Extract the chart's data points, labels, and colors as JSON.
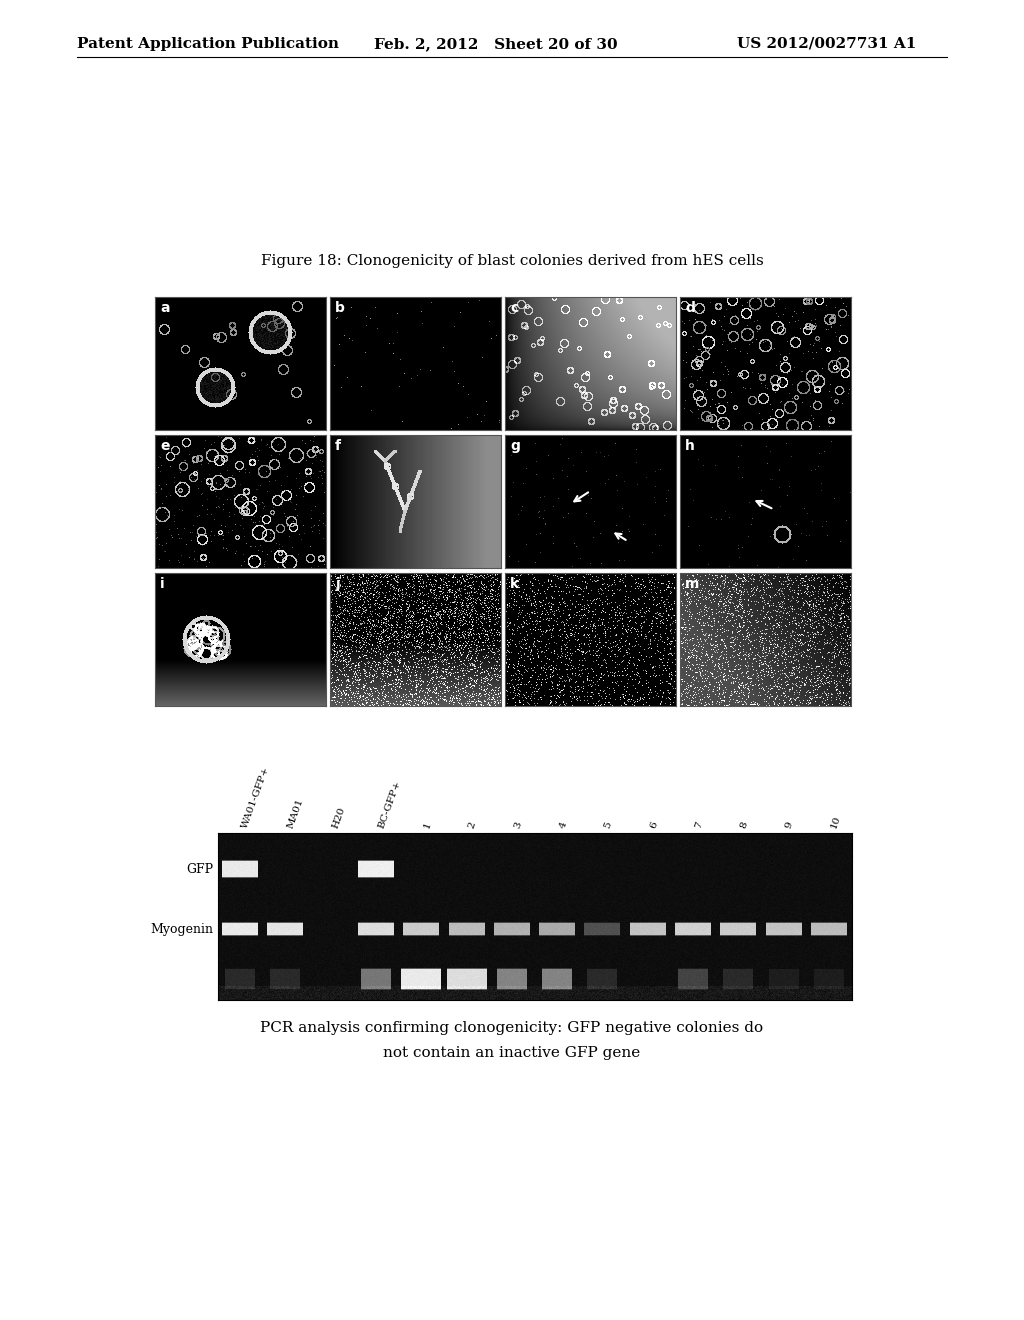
{
  "page_header_left": "Patent Application Publication",
  "page_header_center": "Feb. 2, 2012   Sheet 20 of 30",
  "page_header_right": "US 2012/0027731 A1",
  "figure_title": "Figure 18: Clonogenicity of blast colonies derived from hES cells",
  "grid_labels": [
    "a",
    "b",
    "c",
    "d",
    "e",
    "f",
    "g",
    "h",
    "i",
    "j",
    "k",
    "m"
  ],
  "pcr_label_left1": "GFP",
  "pcr_label_left2": "Myogenin",
  "pcr_x_labels": [
    "WA01-GFP+",
    "MA01",
    "H20",
    "BC-GFP+",
    "1",
    "2",
    "3",
    "4",
    "5",
    "6",
    "7",
    "8",
    "9",
    "10"
  ],
  "caption_line1": "PCR analysis confirming clonogenicity: GFP negative colonies do",
  "caption_line2": "not contain an inactive GFP gene",
  "background_color": "#ffffff",
  "header_fontsize": 11,
  "figure_title_fontsize": 11,
  "caption_fontsize": 11
}
